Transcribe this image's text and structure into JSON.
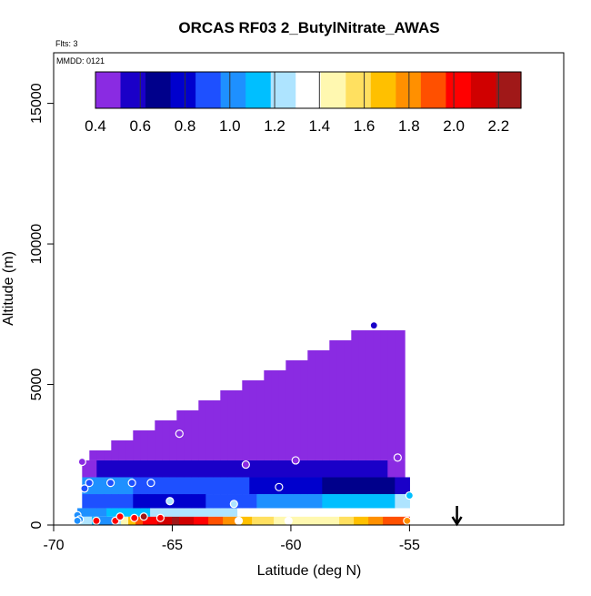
{
  "chart_data": {
    "type": "heatmap",
    "title": "ORCAS RF03 2_ButylNitrate_AWAS",
    "annotations": {
      "flights": "Flts: 3",
      "mmdd": "MMDD: 0121"
    },
    "xlabel": "Latitude (deg N)",
    "ylabel": "Altitude (m)",
    "xlim": [
      -70,
      -48.5
    ],
    "ylim": [
      0,
      16800
    ],
    "x_ticks": [
      -70,
      -65,
      -60,
      -55
    ],
    "x_tick_labels": [
      "-70",
      "-65",
      "-60",
      "-55"
    ],
    "y_ticks": [
      0,
      5000,
      10000,
      15000
    ],
    "y_tick_labels": [
      "0",
      "5000",
      "10000",
      "15000"
    ],
    "colorbar": {
      "min": 0.4,
      "max": 2.3,
      "ticks": [
        0.4,
        0.6,
        0.8,
        1.0,
        1.2,
        1.4,
        1.6,
        1.8,
        2.0,
        2.2
      ],
      "tick_labels": [
        "0.4",
        "0.6",
        "0.8",
        "1.0",
        "1.2",
        "1.4",
        "1.6",
        "1.8",
        "2.0",
        "2.2"
      ],
      "colors": [
        "#8a2be2",
        "#1a00c8",
        "#00008b",
        "#0000cd",
        "#1e50ff",
        "#1e90ff",
        "#00bfff",
        "#aee4ff",
        "#ffffff",
        "#fff8b0",
        "#ffe060",
        "#ffc000",
        "#ff9000",
        "#ff5000",
        "#ff0000",
        "#d00000",
        "#a01818"
      ]
    },
    "arrow_marker_lat": -53,
    "layers": [
      {
        "alt": [
          0,
          300
        ],
        "lat": [
          -69,
          -55
        ],
        "stops": [
          [
            0,
            1.3
          ],
          [
            0.1,
            1.0
          ],
          [
            0.2,
            2.0
          ],
          [
            0.3,
            2.2
          ],
          [
            0.45,
            1.8
          ],
          [
            0.6,
            1.5
          ],
          [
            0.75,
            1.4
          ],
          [
            0.9,
            1.8
          ],
          [
            1,
            2.0
          ]
        ]
      },
      {
        "alt": [
          300,
          600
        ],
        "lat": [
          -69,
          -55
        ],
        "stops": [
          [
            0,
            1.0
          ],
          [
            0.25,
            1.2
          ],
          [
            0.5,
            1.3
          ],
          [
            0.75,
            1.4
          ],
          [
            1,
            1.4
          ]
        ]
      },
      {
        "alt": [
          600,
          1100
        ],
        "lat": [
          -68.8,
          -55
        ],
        "stops": [
          [
            0,
            0.9
          ],
          [
            0.3,
            0.8
          ],
          [
            0.6,
            1.0
          ],
          [
            0.8,
            1.1
          ],
          [
            1,
            1.2
          ]
        ]
      },
      {
        "alt": [
          1100,
          1700
        ],
        "lat": [
          -68.8,
          -55
        ],
        "stops": [
          [
            0,
            1.0
          ],
          [
            0.4,
            0.9
          ],
          [
            0.6,
            0.8
          ],
          [
            0.8,
            0.7
          ],
          [
            1,
            0.6
          ]
        ]
      },
      {
        "alt": [
          1700,
          2300
        ],
        "lat": [
          -68.8,
          -55.2
        ],
        "stops": [
          [
            0,
            0.5
          ],
          [
            0.4,
            0.6
          ],
          [
            0.8,
            0.55
          ],
          [
            1,
            0.5
          ]
        ]
      },
      {
        "alt": [
          2300,
          7100
        ],
        "lat": [
          -68.8,
          -55.2
        ],
        "topLeft": 2300,
        "topRight": 7100,
        "rightTopLat": -56.3,
        "stops": [
          [
            0,
            0.45
          ],
          [
            0.6,
            0.42
          ],
          [
            1,
            0.4
          ]
        ]
      }
    ],
    "points": [
      {
        "lat": -56.5,
        "alt": 7100,
        "value": 0.6
      },
      {
        "lat": -64.7,
        "alt": 3250,
        "value": 0.4
      },
      {
        "lat": -59.8,
        "alt": 2300,
        "value": 0.4
      },
      {
        "lat": -55.5,
        "alt": 2400,
        "value": 0.4
      },
      {
        "lat": -61.9,
        "alt": 2150,
        "value": 0.5
      },
      {
        "lat": -68.8,
        "alt": 2250,
        "value": 0.5
      },
      {
        "lat": -68.5,
        "alt": 1500,
        "value": 0.9
      },
      {
        "lat": -67.6,
        "alt": 1500,
        "value": 0.9
      },
      {
        "lat": -66.7,
        "alt": 1500,
        "value": 0.9
      },
      {
        "lat": -65.9,
        "alt": 1500,
        "value": 0.9
      },
      {
        "lat": -68.7,
        "alt": 1300,
        "value": 0.9
      },
      {
        "lat": -60.5,
        "alt": 1350,
        "value": 0.8
      },
      {
        "lat": -55.0,
        "alt": 1050,
        "value": 1.1
      },
      {
        "lat": -65.1,
        "alt": 850,
        "value": 1.2
      },
      {
        "lat": -62.4,
        "alt": 750,
        "value": 1.2
      },
      {
        "lat": -69.0,
        "alt": 350,
        "value": 1.0
      },
      {
        "lat": -68.9,
        "alt": 200,
        "value": 1.0
      },
      {
        "lat": -69.0,
        "alt": 150,
        "value": 1.0
      },
      {
        "lat": -68.2,
        "alt": 150,
        "value": 2.0
      },
      {
        "lat": -67.4,
        "alt": 150,
        "value": 2.0
      },
      {
        "lat": -67.2,
        "alt": 300,
        "value": 2.0
      },
      {
        "lat": -66.6,
        "alt": 250,
        "value": 2.0
      },
      {
        "lat": -66.2,
        "alt": 300,
        "value": 2.2
      },
      {
        "lat": -65.5,
        "alt": 250,
        "value": 2.0
      },
      {
        "lat": -62.2,
        "alt": 150,
        "value": 1.4
      },
      {
        "lat": -60.1,
        "alt": 150,
        "value": 1.4
      },
      {
        "lat": -55.1,
        "alt": 150,
        "value": 1.8
      }
    ]
  }
}
